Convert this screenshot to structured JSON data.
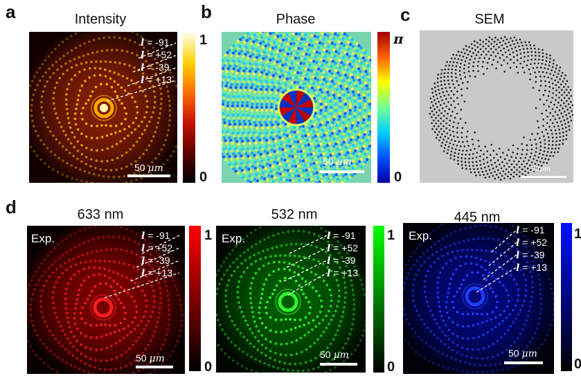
{
  "panels": {
    "a": {
      "letter": "a",
      "title": "Intensity",
      "orders": [
        "-91",
        "+52",
        "-39",
        "+13"
      ],
      "l_symbol": "l",
      "scale_value": "50",
      "scale_unit": "μm",
      "colorbar": {
        "max": "1",
        "min": "0",
        "colors": [
          "#000000",
          "#5a0000",
          "#c81000",
          "#ff6a00",
          "#ffd000",
          "#ffffe0"
        ]
      }
    },
    "b": {
      "letter": "b",
      "title": "Phase",
      "scale_value": "50",
      "scale_unit": "μm",
      "colorbar": {
        "max": "π",
        "min": "0",
        "colors": [
          "#0000a0",
          "#0050ff",
          "#00d0ff",
          "#70ff90",
          "#ffff00",
          "#ff6000",
          "#a00000"
        ]
      }
    },
    "c": {
      "letter": "c",
      "title": "SEM",
      "scale_value": "50",
      "scale_unit": "μm"
    },
    "d": {
      "letter": "d",
      "exp_label": "Exp.",
      "l_symbol": "l",
      "orders": [
        "-91",
        "+52",
        "-39",
        "+13"
      ],
      "subpanels": [
        {
          "wavelength": "633 nm",
          "scale_value": "50",
          "scale_unit": "μm",
          "colorbar": {
            "max": "1",
            "min": "0",
            "colors": [
              "#000000",
              "#ff0000"
            ]
          }
        },
        {
          "wavelength": "532 nm",
          "scale_value": "50",
          "scale_unit": "μm",
          "colorbar": {
            "max": "1",
            "min": "0",
            "colors": [
              "#000000",
              "#00ff00"
            ]
          }
        },
        {
          "wavelength": "445 nm",
          "scale_value": "50",
          "scale_unit": "μm",
          "colorbar": {
            "max": "1",
            "min": "0",
            "colors": [
              "#000000",
              "#0010ff"
            ]
          }
        }
      ]
    }
  }
}
